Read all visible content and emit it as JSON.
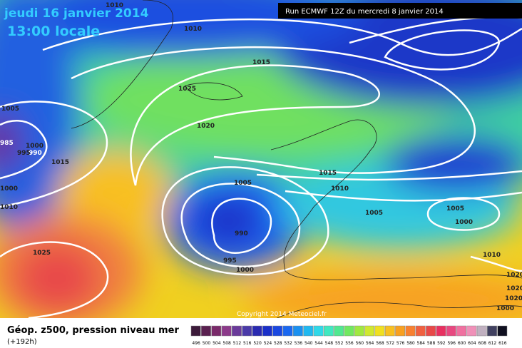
{
  "header": {
    "date": "jeudi 16 janvier 2014",
    "time": "13:00 locale",
    "run": "Run ECMWF 12Z du mercredi 8 janvier 2014"
  },
  "isobar_labels": [
    "1010",
    "1010",
    "1015",
    "1025",
    "1005",
    "1020",
    "985",
    "1000",
    "990",
    "995",
    "1015",
    "1015",
    "1005",
    "1010",
    "1000",
    "1010",
    "1005",
    "1005",
    "1000",
    "990",
    "1025",
    "995",
    "1000",
    "1010",
    "1020",
    "1020",
    "1020",
    "1000"
  ],
  "footer": {
    "title": "Géop. z500, pression niveau mer",
    "lead": "(+192h)",
    "copyright": "Copyright 2014 Meteociel.fr"
  },
  "legend": {
    "ticks": [
      496,
      500,
      504,
      508,
      512,
      516,
      520,
      524,
      528,
      532,
      536,
      540,
      544,
      548,
      552,
      556,
      560,
      564,
      568,
      572,
      576,
      580,
      584,
      588,
      592,
      596,
      600,
      604,
      608,
      612,
      616
    ],
    "colors": [
      "#3c1a3a",
      "#5a2050",
      "#7a2a6a",
      "#8c3a8a",
      "#6a3a9a",
      "#4a3aa8",
      "#2a2ab0",
      "#1a30c8",
      "#1a48e0",
      "#1a68f0",
      "#1a90f0",
      "#20b8f0",
      "#30d8e8",
      "#40e8c0",
      "#50e890",
      "#70e860",
      "#a0e840",
      "#d0e830",
      "#f0e020",
      "#f8c020",
      "#f8a020",
      "#f88030",
      "#f06040",
      "#e84848",
      "#e83060",
      "#e84880",
      "#f070a0",
      "#f090b8",
      "#c0b0c0",
      "#404060",
      "#101020"
    ]
  }
}
